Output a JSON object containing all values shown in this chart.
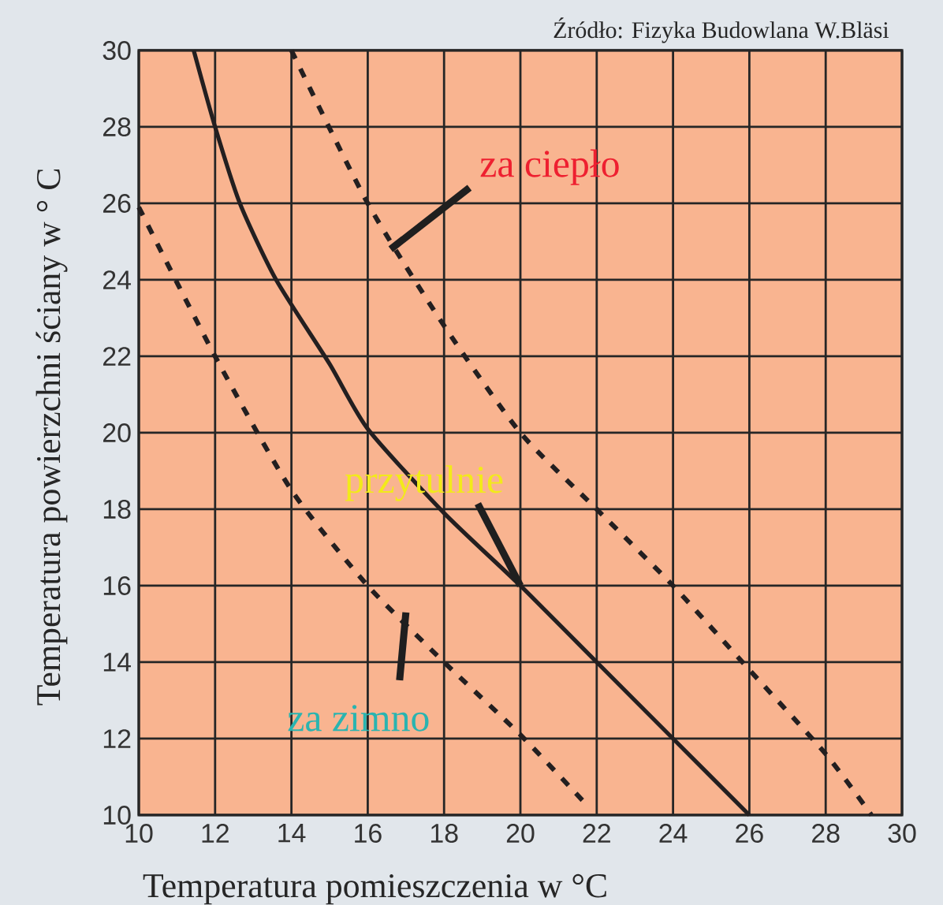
{
  "chart_data": {
    "type": "line",
    "xlabel": "Temperatura pomieszczenia w °C",
    "ylabel": "Temperatura powierzchni ściany w ° C",
    "series": [
      {
        "color": "#231f20",
        "line_style": "solid",
        "x": [
          11.44,
          12,
          12.65,
          13.6,
          15,
          16,
          18,
          20,
          22,
          24,
          26
        ],
        "values": [
          30,
          28,
          26,
          24,
          21.8,
          20.1,
          17.9,
          16,
          14,
          12,
          10
        ]
      },
      {
        "color": "#231f20",
        "line_style": "dashed",
        "x": [
          14,
          16,
          18,
          20,
          22,
          24,
          26,
          28,
          29.2
        ],
        "values": [
          30,
          26,
          22.8,
          20,
          18,
          16,
          13.8,
          11.6,
          10
        ]
      },
      {
        "color": "#231f20",
        "line_style": "dashed",
        "x": [
          10,
          12,
          14,
          16,
          18,
          20,
          21.8
        ],
        "values": [
          25.9,
          22,
          18.5,
          16,
          14,
          12.1,
          10.2
        ]
      }
    ],
    "xlim": [
      10,
      30
    ],
    "ylim": [
      10,
      30
    ],
    "xticks": [
      10,
      12,
      14,
      16,
      18,
      20,
      22,
      24,
      26,
      28,
      30
    ],
    "yticks": [
      10,
      12,
      14,
      16,
      18,
      20,
      22,
      24,
      26,
      28,
      30
    ],
    "grid": true,
    "annotations": [
      {
        "text": "za ciepło",
        "x": 16.6,
        "y": 24.8
      },
      {
        "text": "przytulnie",
        "x": 20,
        "y": 16
      },
      {
        "text": "za zimno",
        "x": 17.0,
        "y": 15.3
      },
      "Źródło: Fizyka Budowlana W.Bläsi"
    ]
  }
}
